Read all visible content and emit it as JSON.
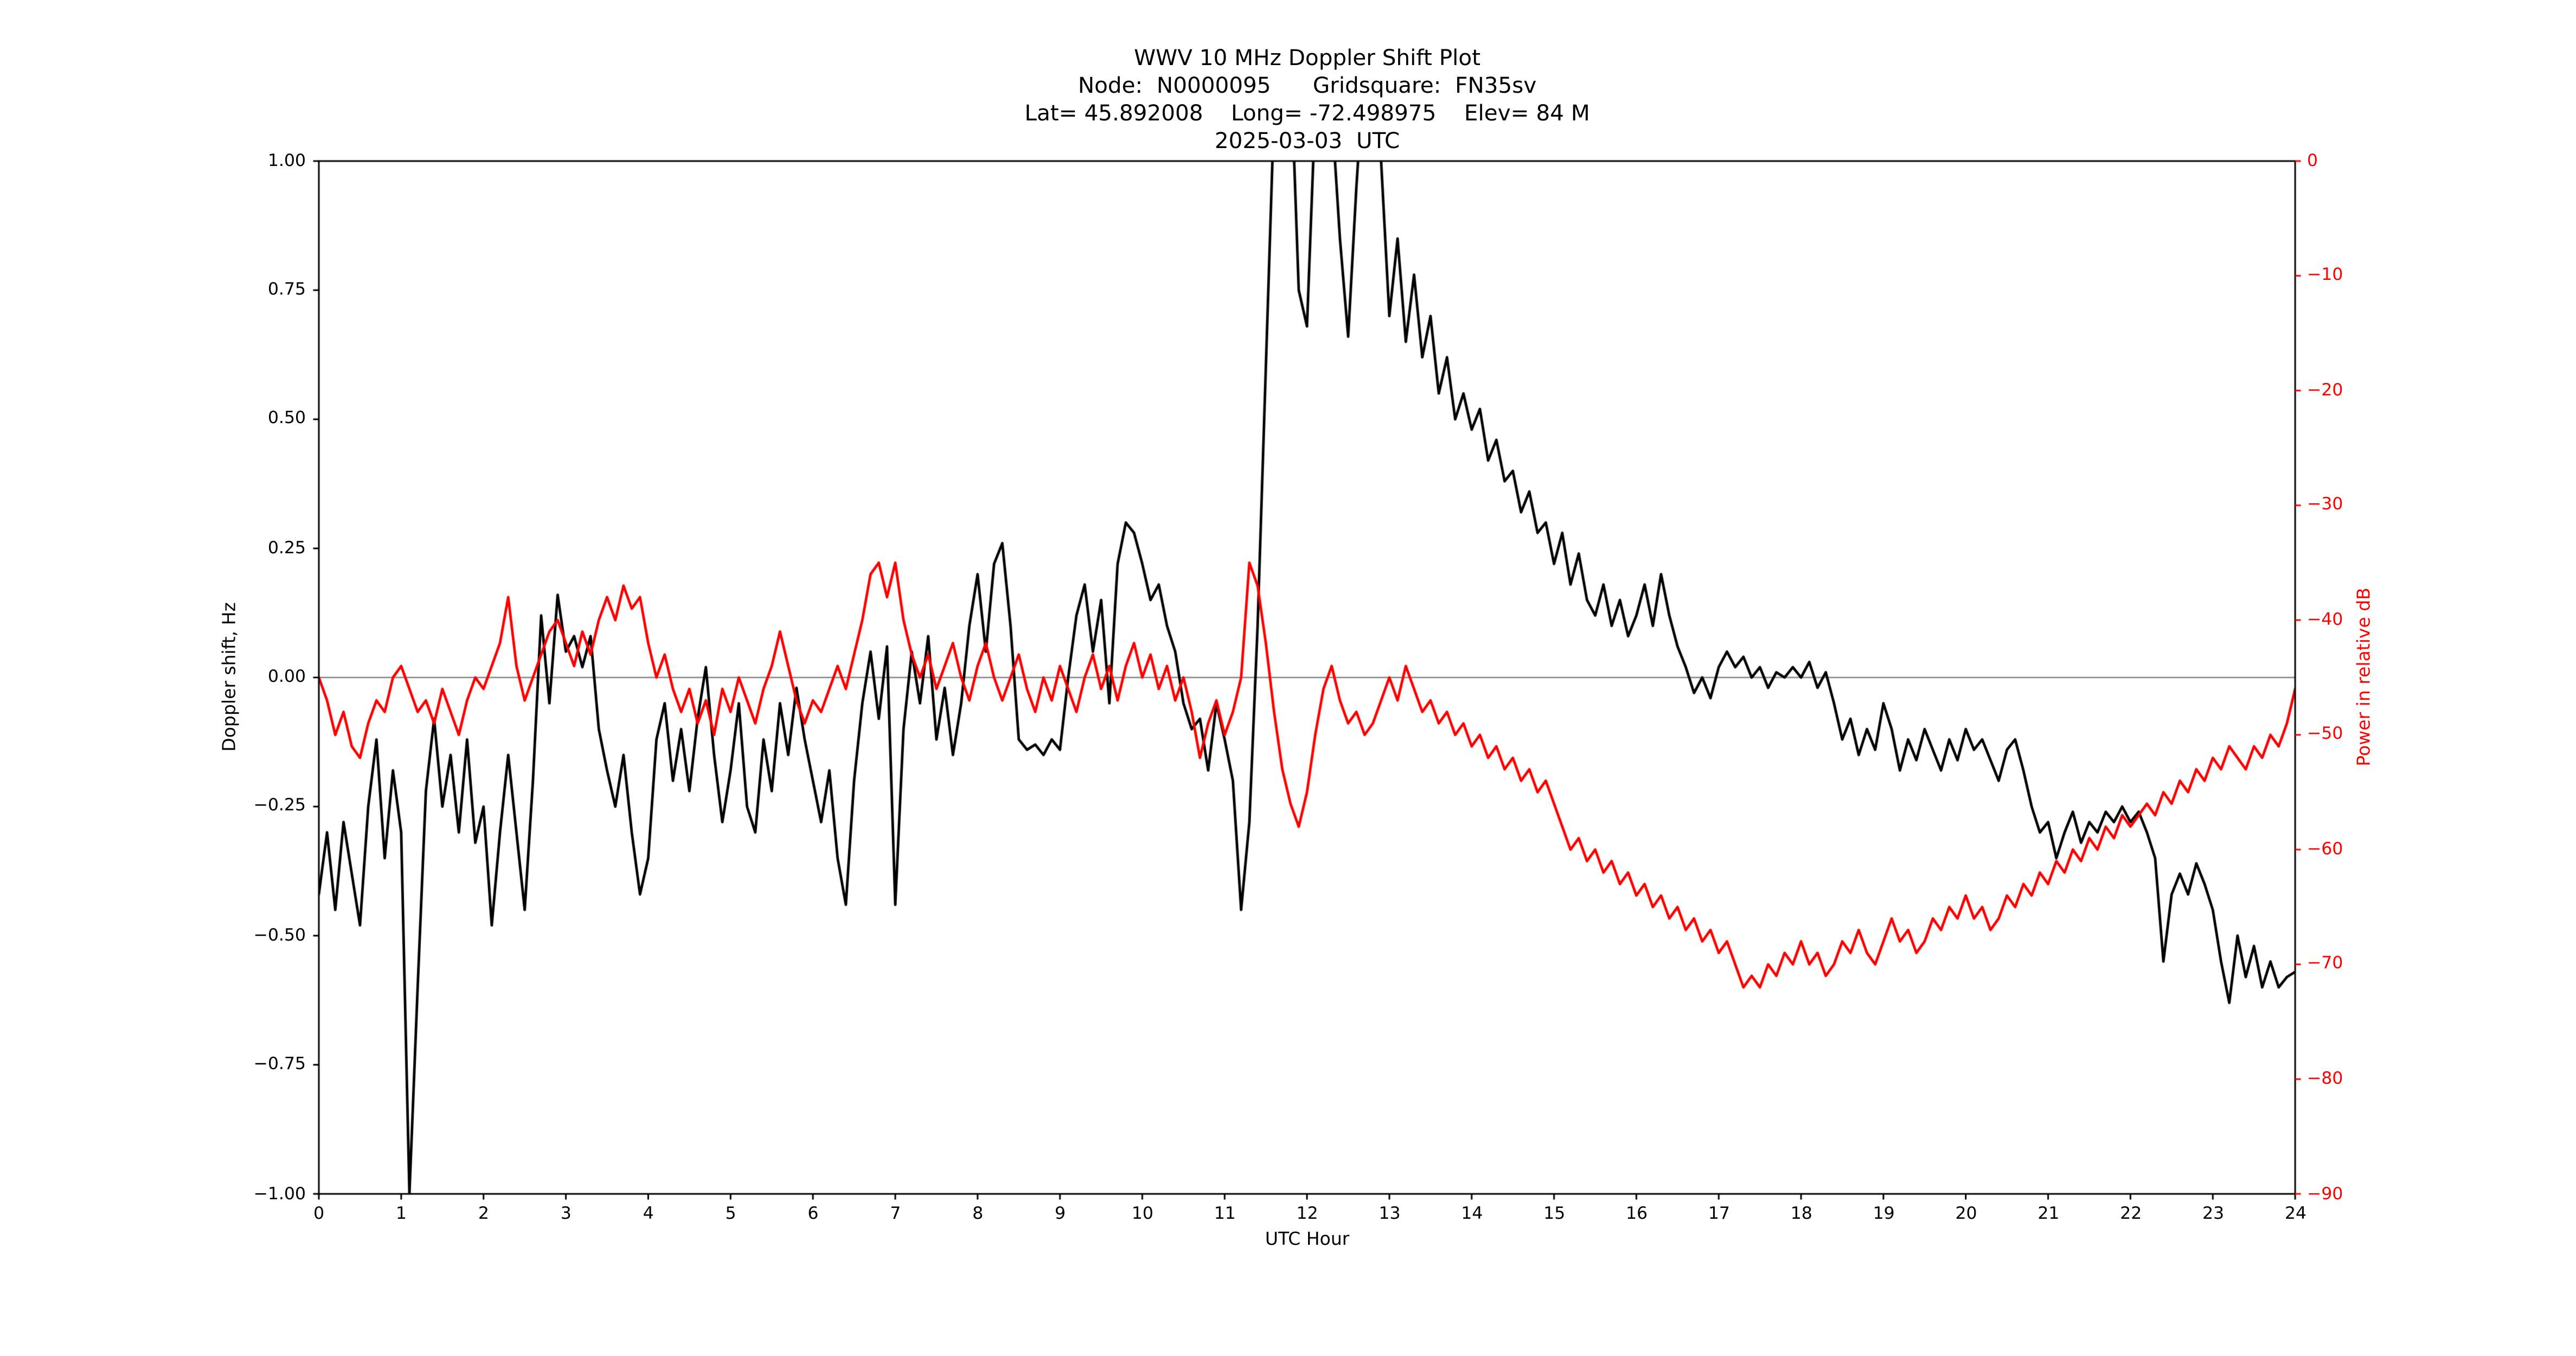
{
  "header": {
    "line1": "WWV 10 MHz Doppler Shift Plot",
    "line2": "Node:  N0000095      Gridsquare:  FN35sv",
    "line3": "Lat= 45.892008    Long= -72.498975    Elev= 84 M",
    "line4": "2025-03-03  UTC"
  },
  "axes": {
    "x": {
      "label": "UTC Hour",
      "range": [
        0,
        24
      ],
      "ticks": [
        "0",
        "1",
        "2",
        "3",
        "4",
        "5",
        "6",
        "7",
        "8",
        "9",
        "10",
        "11",
        "12",
        "13",
        "14",
        "15",
        "16",
        "17",
        "18",
        "19",
        "20",
        "21",
        "22",
        "23",
        "24"
      ]
    },
    "left": {
      "label": "Doppler shift, Hz",
      "range": [
        -1.0,
        1.0
      ],
      "color": "#000000",
      "ticks": [
        "1.00",
        "0.75",
        "0.50",
        "0.25",
        "0.00",
        "−0.25",
        "−0.50",
        "−0.75",
        "−1.00"
      ]
    },
    "right": {
      "label": "Power in relative dB",
      "range": [
        -90,
        0
      ],
      "color": "#ff0000",
      "ticks": [
        "0",
        "−10",
        "−20",
        "−30",
        "−40",
        "−50",
        "−60",
        "−70",
        "−80",
        "−90"
      ]
    }
  },
  "chart_data": {
    "type": "line",
    "title": "WWV 10 MHz Doppler Shift Plot",
    "subtitle": [
      "Node:  N0000095      Gridsquare:  FN35sv",
      "Lat= 45.892008    Long= -72.498975    Elev= 84 M",
      "2025-03-03  UTC"
    ],
    "xlabel": "UTC Hour",
    "x_range": [
      0,
      24
    ],
    "x_start": 0,
    "x_step": 0.1,
    "grid": "zero-line-only",
    "legend": "none",
    "zero_line": {
      "value": 0,
      "axis": "left",
      "color": "#808080"
    },
    "series": [
      {
        "name": "Doppler shift",
        "axis": "left",
        "ylabel": "Doppler shift, Hz",
        "ylim": [
          -1.0,
          1.0
        ],
        "color": "#000000",
        "values": [
          -0.42,
          -0.3,
          -0.45,
          -0.28,
          -0.38,
          -0.48,
          -0.25,
          -0.12,
          -0.35,
          -0.18,
          -0.3,
          -1.0,
          -0.6,
          -0.22,
          -0.08,
          -0.25,
          -0.15,
          -0.3,
          -0.12,
          -0.32,
          -0.25,
          -0.48,
          -0.3,
          -0.15,
          -0.3,
          -0.45,
          -0.2,
          0.12,
          -0.05,
          0.16,
          0.05,
          0.08,
          0.02,
          0.08,
          -0.1,
          -0.18,
          -0.25,
          -0.15,
          -0.3,
          -0.42,
          -0.35,
          -0.12,
          -0.05,
          -0.2,
          -0.1,
          -0.22,
          -0.08,
          0.02,
          -0.15,
          -0.28,
          -0.18,
          -0.05,
          -0.25,
          -0.3,
          -0.12,
          -0.22,
          -0.05,
          -0.15,
          -0.02,
          -0.12,
          -0.2,
          -0.28,
          -0.18,
          -0.35,
          -0.44,
          -0.2,
          -0.05,
          0.05,
          -0.08,
          0.06,
          -0.44,
          -0.1,
          0.05,
          -0.05,
          0.08,
          -0.12,
          -0.02,
          -0.15,
          -0.05,
          0.1,
          0.2,
          0.05,
          0.22,
          0.26,
          0.1,
          -0.12,
          -0.14,
          -0.13,
          -0.15,
          -0.12,
          -0.14,
          0.0,
          0.12,
          0.18,
          0.05,
          0.15,
          -0.05,
          0.22,
          0.3,
          0.28,
          0.22,
          0.15,
          0.18,
          0.1,
          0.05,
          -0.05,
          -0.1,
          -0.08,
          -0.18,
          -0.05,
          -0.12,
          -0.2,
          -0.45,
          -0.28,
          0.1,
          0.6,
          1.1,
          1.3,
          1.2,
          0.75,
          0.68,
          1.1,
          1.3,
          1.1,
          0.85,
          0.66,
          0.95,
          1.2,
          1.25,
          1.0,
          0.7,
          0.85,
          0.65,
          0.78,
          0.62,
          0.7,
          0.55,
          0.62,
          0.5,
          0.55,
          0.48,
          0.52,
          0.42,
          0.46,
          0.38,
          0.4,
          0.32,
          0.36,
          0.28,
          0.3,
          0.22,
          0.28,
          0.18,
          0.24,
          0.15,
          0.12,
          0.18,
          0.1,
          0.15,
          0.08,
          0.12,
          0.18,
          0.1,
          0.2,
          0.12,
          0.06,
          0.02,
          -0.03,
          0.0,
          -0.04,
          0.02,
          0.05,
          0.02,
          0.04,
          0.0,
          0.02,
          -0.02,
          0.01,
          0.0,
          0.02,
          0.0,
          0.03,
          -0.02,
          0.01,
          -0.05,
          -0.12,
          -0.08,
          -0.15,
          -0.1,
          -0.14,
          -0.05,
          -0.1,
          -0.18,
          -0.12,
          -0.16,
          -0.1,
          -0.14,
          -0.18,
          -0.12,
          -0.16,
          -0.1,
          -0.14,
          -0.12,
          -0.16,
          -0.2,
          -0.14,
          -0.12,
          -0.18,
          -0.25,
          -0.3,
          -0.28,
          -0.35,
          -0.3,
          -0.26,
          -0.32,
          -0.28,
          -0.3,
          -0.26,
          -0.28,
          -0.25,
          -0.28,
          -0.26,
          -0.3,
          -0.35,
          -0.55,
          -0.42,
          -0.38,
          -0.42,
          -0.36,
          -0.4,
          -0.45,
          -0.55,
          -0.63,
          -0.5,
          -0.58,
          -0.52,
          -0.6,
          -0.55,
          -0.6,
          -0.58,
          -0.57
        ]
      },
      {
        "name": "Power",
        "axis": "right",
        "ylabel": "Power in relative dB",
        "ylim": [
          -90,
          0
        ],
        "color": "#ff0000",
        "values": [
          -45,
          -47,
          -50,
          -48,
          -51,
          -52,
          -49,
          -47,
          -48,
          -45,
          -44,
          -46,
          -48,
          -47,
          -49,
          -46,
          -48,
          -50,
          -47,
          -45,
          -46,
          -44,
          -42,
          -38,
          -44,
          -47,
          -45,
          -43,
          -41,
          -40,
          -42,
          -44,
          -41,
          -43,
          -40,
          -38,
          -40,
          -37,
          -39,
          -38,
          -42,
          -45,
          -43,
          -46,
          -48,
          -46,
          -49,
          -47,
          -50,
          -46,
          -48,
          -45,
          -47,
          -49,
          -46,
          -44,
          -41,
          -44,
          -47,
          -49,
          -47,
          -48,
          -46,
          -44,
          -46,
          -43,
          -40,
          -36,
          -35,
          -38,
          -35,
          -40,
          -43,
          -45,
          -43,
          -46,
          -44,
          -42,
          -45,
          -47,
          -44,
          -42,
          -45,
          -47,
          -45,
          -43,
          -46,
          -48,
          -45,
          -47,
          -44,
          -46,
          -48,
          -45,
          -43,
          -46,
          -44,
          -47,
          -44,
          -42,
          -45,
          -43,
          -46,
          -44,
          -47,
          -45,
          -48,
          -52,
          -49,
          -47,
          -50,
          -48,
          -45,
          -35,
          -37,
          -42,
          -48,
          -53,
          -56,
          -58,
          -55,
          -50,
          -46,
          -44,
          -47,
          -49,
          -48,
          -50,
          -49,
          -47,
          -45,
          -47,
          -44,
          -46,
          -48,
          -47,
          -49,
          -48,
          -50,
          -49,
          -51,
          -50,
          -52,
          -51,
          -53,
          -52,
          -54,
          -53,
          -55,
          -54,
          -56,
          -58,
          -60,
          -59,
          -61,
          -60,
          -62,
          -61,
          -63,
          -62,
          -64,
          -63,
          -65,
          -64,
          -66,
          -65,
          -67,
          -66,
          -68,
          -67,
          -69,
          -68,
          -70,
          -72,
          -71,
          -72,
          -70,
          -71,
          -69,
          -70,
          -68,
          -70,
          -69,
          -71,
          -70,
          -68,
          -69,
          -67,
          -69,
          -70,
          -68,
          -66,
          -68,
          -67,
          -69,
          -68,
          -66,
          -67,
          -65,
          -66,
          -64,
          -66,
          -65,
          -67,
          -66,
          -64,
          -65,
          -63,
          -64,
          -62,
          -63,
          -61,
          -62,
          -60,
          -61,
          -59,
          -60,
          -58,
          -59,
          -57,
          -58,
          -57,
          -56,
          -57,
          -55,
          -56,
          -54,
          -55,
          -53,
          -54,
          -52,
          -53,
          -51,
          -52,
          -53,
          -51,
          -52,
          -50,
          -51,
          -49,
          -46
        ]
      }
    ]
  }
}
